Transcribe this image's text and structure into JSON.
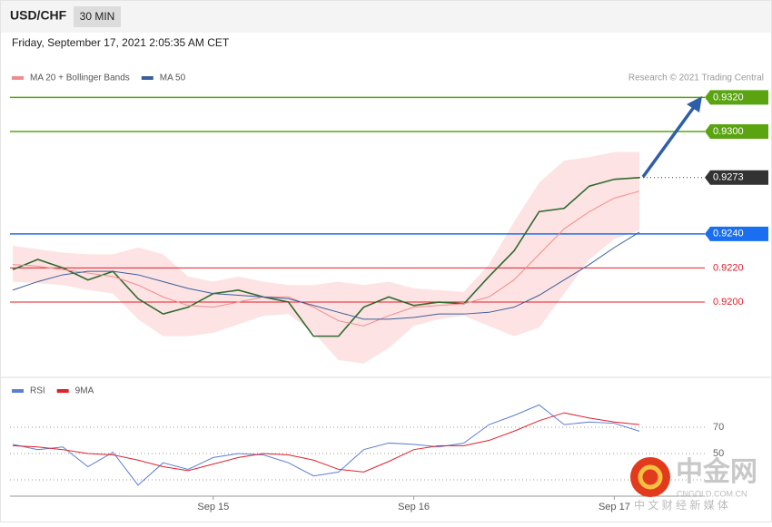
{
  "header": {
    "symbol": "USD/CHF",
    "interval": "30 MIN",
    "timestamp": "Friday, September 17, 2021 2:05:35 AM CET",
    "credit": "Research © 2021 Trading Central"
  },
  "watermark": {
    "logo": "中金网",
    "site": "CNGOLD.COM.CN",
    "slogan": "中 文 财 经 新 媒 体"
  },
  "chart_data": [
    {
      "type": "line",
      "ylim": [
        0.91564,
        0.93266
      ],
      "band": {
        "color": "#fde3e3",
        "upper": [
          0.9233,
          0.9231,
          0.9229,
          0.9228,
          0.9228,
          0.9232,
          0.9228,
          0.9215,
          0.9212,
          0.9215,
          0.9212,
          0.921,
          0.921,
          0.9212,
          0.921,
          0.9212,
          0.9208,
          0.9207,
          0.9206,
          0.9222,
          0.9247,
          0.927,
          0.9283,
          0.9285,
          0.9288,
          0.9288
        ],
        "lower": [
          0.9212,
          0.9211,
          0.921,
          0.9207,
          0.9205,
          0.919,
          0.918,
          0.918,
          0.9182,
          0.9187,
          0.9192,
          0.9193,
          0.9182,
          0.9166,
          0.9164,
          0.9173,
          0.9186,
          0.919,
          0.9192,
          0.9186,
          0.918,
          0.9185,
          0.9205,
          0.9225,
          0.9237,
          0.9242
        ]
      },
      "series": [
        {
          "color": "#2f6b2f",
          "values": [
            0.9219,
            0.9225,
            0.922,
            0.9213,
            0.9218,
            0.9202,
            0.9193,
            0.9197,
            0.9205,
            0.9207,
            0.9203,
            0.92,
            0.918,
            0.918,
            0.9197,
            0.9203,
            0.9198,
            0.92,
            0.9199,
            0.9215,
            0.923,
            0.9253,
            0.9255,
            0.9268,
            0.9272,
            0.9273
          ]
        },
        {
          "name": "MA 20 + Bollinger Bands",
          "color": "#f28c8c",
          "values": [
            0.9222,
            0.9221,
            0.9219,
            0.9217,
            0.9215,
            0.921,
            0.9203,
            0.9198,
            0.9197,
            0.92,
            0.9203,
            0.9203,
            0.9197,
            0.9189,
            0.9186,
            0.9192,
            0.9197,
            0.9198,
            0.9199,
            0.9203,
            0.9213,
            0.9228,
            0.9243,
            0.9253,
            0.9261,
            0.9265
          ]
        },
        {
          "name": "MA 50",
          "color": "#3a5f9c",
          "values": [
            0.9207,
            0.9212,
            0.9216,
            0.9218,
            0.9218,
            0.9216,
            0.9212,
            0.9208,
            0.9205,
            0.9204,
            0.9203,
            0.9202,
            0.9198,
            0.9194,
            0.919,
            0.919,
            0.9191,
            0.9193,
            0.9193,
            0.9194,
            0.9197,
            0.9204,
            0.9213,
            0.9222,
            0.9232,
            0.9241
          ]
        }
      ],
      "levels": [
        {
          "value": 0.932,
          "label": "0.9320",
          "color": "#5aa412",
          "boxed": true
        },
        {
          "value": 0.93,
          "label": "0.9300",
          "color": "#5aa412",
          "boxed": true
        },
        {
          "value": 0.9273,
          "label": "0.9273",
          "color": "#333333",
          "boxed": true,
          "dotted": true
        },
        {
          "value": 0.924,
          "label": "0.9240",
          "color": "#1a6ff0",
          "boxed": true
        },
        {
          "value": 0.922,
          "label": "0.9220",
          "color": "#e0202a",
          "boxed": false
        },
        {
          "value": 0.92,
          "label": "0.9200",
          "color": "#e0202a",
          "boxed": false
        }
      ]
    },
    {
      "type": "line",
      "ylim": [
        19,
        91.4
      ],
      "yticks": [
        70,
        50
      ],
      "categories": [
        null,
        null,
        null,
        null,
        null,
        null,
        null,
        null,
        "Sep 15",
        null,
        null,
        null,
        null,
        null,
        null,
        null,
        "Sep 16",
        null,
        null,
        null,
        null,
        null,
        null,
        null,
        "Sep 17",
        null
      ],
      "series": [
        {
          "name": "RSI",
          "color": "#5b7fd4",
          "values": [
            57,
            53,
            55,
            40,
            51,
            26,
            43,
            38,
            47,
            50,
            49,
            43,
            33,
            36,
            53,
            58,
            57,
            55,
            58,
            72,
            79,
            87,
            72,
            74,
            73,
            67
          ]
        },
        {
          "name": "9MA",
          "color": "#e0202a",
          "values": [
            56,
            55,
            53,
            50,
            49,
            45,
            40,
            37,
            42,
            47,
            50,
            49,
            45,
            38,
            36,
            44,
            53,
            56,
            56,
            60,
            67,
            75,
            81,
            77,
            74,
            72
          ]
        }
      ]
    }
  ]
}
